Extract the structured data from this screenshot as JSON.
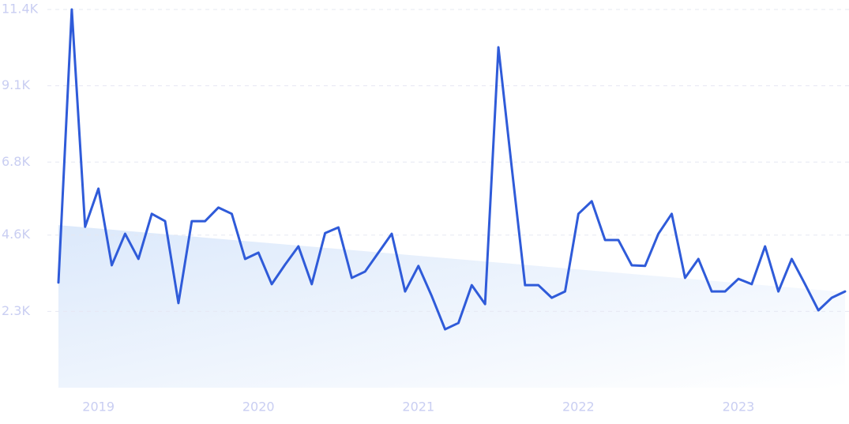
{
  "chart_data": {
    "type": "line",
    "categories": [
      null,
      null,
      null,
      "2019",
      null,
      null,
      null,
      null,
      null,
      null,
      null,
      null,
      null,
      null,
      null,
      "2020",
      null,
      null,
      null,
      null,
      null,
      null,
      null,
      null,
      null,
      null,
      null,
      "2021",
      null,
      null,
      null,
      null,
      null,
      null,
      null,
      null,
      null,
      null,
      null,
      "2022",
      null,
      null,
      null,
      null,
      null,
      null,
      null,
      null,
      null,
      null,
      null,
      "2023",
      null,
      null,
      null,
      null,
      null,
      null,
      null,
      null
    ],
    "series": [
      {
        "color": "#2f5bd9",
        "values": [
          3170,
          11400,
          4850,
          6000,
          3690,
          4640,
          3880,
          5240,
          5020,
          2550,
          5020,
          5020,
          5430,
          5240,
          3880,
          4070,
          3120,
          3710,
          4260,
          3120,
          4660,
          4830,
          3310,
          3500,
          4070,
          4640,
          2900,
          3670,
          2760,
          1760,
          1950,
          3090,
          2520,
          10260,
          6640,
          3090,
          3090,
          2710,
          2900,
          5240,
          5620,
          4450,
          4450,
          3690,
          3670,
          4640,
          5240,
          3310,
          3880,
          2900,
          2900,
          3280,
          3120,
          4260,
          2900,
          3880,
          3120,
          2330,
          2710,
          2900
        ]
      }
    ],
    "trend": {
      "values": [
        4900,
        2880
      ],
      "color": "#dce9fb"
    },
    "ylim": [
      0,
      11400
    ],
    "yticks": [
      {
        "value": 2300,
        "label": "2.3K"
      },
      {
        "value": 4600,
        "label": "4.6K"
      },
      {
        "value": 6800,
        "label": "6.8K"
      },
      {
        "value": 9100,
        "label": "9.1K"
      },
      {
        "value": 11400,
        "label": "11.4K"
      }
    ],
    "grid": true
  }
}
